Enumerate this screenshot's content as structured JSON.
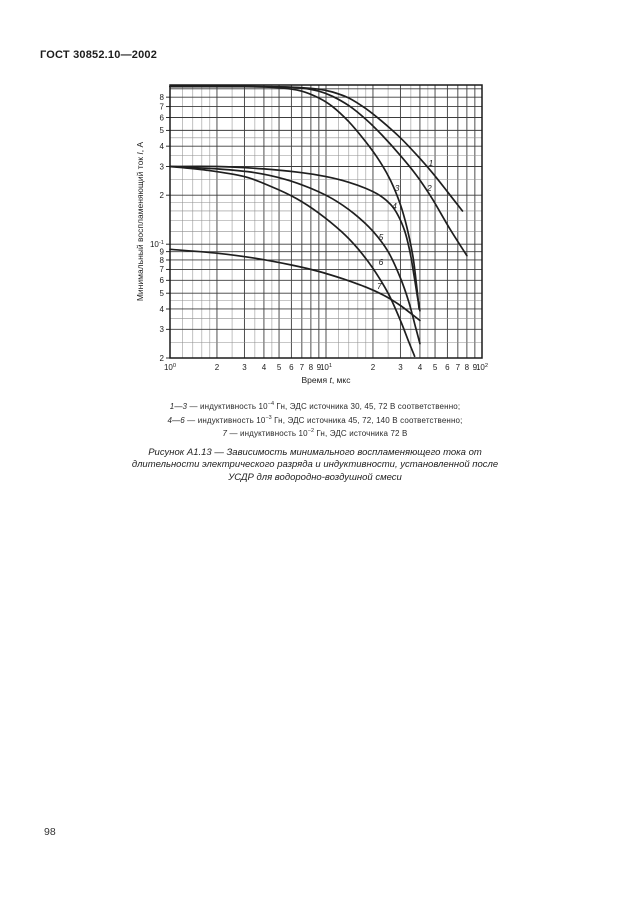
{
  "page": {
    "header": "ГОСТ 30852.10—2002",
    "number": "98"
  },
  "chart_data": {
    "type": "line",
    "x_scale": "log",
    "y_scale": "log",
    "xlim": [
      1,
      100
    ],
    "ylim": [
      0.02,
      0.95
    ],
    "grid": true,
    "grid_multiples": [
      1,
      1.2,
      1.4,
      1.6,
      1.8,
      2,
      2.5,
      3,
      3.5,
      4,
      4.5,
      5,
      6,
      7,
      8,
      9
    ],
    "xlabel_parts": [
      "Время ",
      "t",
      ", мкс"
    ],
    "ylabel_parts": [
      "Минимальный воспламеняющий ток ",
      "I",
      ", А"
    ],
    "x_ticks": [
      {
        "v": 1,
        "t": "10^0"
      },
      {
        "v": 2,
        "t": "2"
      },
      {
        "v": 3,
        "t": "3"
      },
      {
        "v": 4,
        "t": "4"
      },
      {
        "v": 5,
        "t": "5"
      },
      {
        "v": 6,
        "t": "6"
      },
      {
        "v": 7,
        "t": "7"
      },
      {
        "v": 8,
        "t": "8"
      },
      {
        "v": 9,
        "t": "9"
      },
      {
        "v": 10,
        "t": "10^1"
      },
      {
        "v": 20,
        "t": "2"
      },
      {
        "v": 30,
        "t": "3"
      },
      {
        "v": 40,
        "t": "4"
      },
      {
        "v": 50,
        "t": "5"
      },
      {
        "v": 60,
        "t": "6"
      },
      {
        "v": 70,
        "t": "7"
      },
      {
        "v": 80,
        "t": "8"
      },
      {
        "v": 90,
        "t": "9"
      },
      {
        "v": 100,
        "t": "10^2"
      }
    ],
    "y_ticks": [
      {
        "v": 0.8,
        "t": "8"
      },
      {
        "v": 0.7,
        "t": "7"
      },
      {
        "v": 0.6,
        "t": "6"
      },
      {
        "v": 0.5,
        "t": "5"
      },
      {
        "v": 0.4,
        "t": "4"
      },
      {
        "v": 0.3,
        "t": "3"
      },
      {
        "v": 0.2,
        "t": "2"
      },
      {
        "v": 0.1,
        "t": "10^-1"
      },
      {
        "v": 0.09,
        "t": "9"
      },
      {
        "v": 0.08,
        "t": "8"
      },
      {
        "v": 0.07,
        "t": "7"
      },
      {
        "v": 0.06,
        "t": "6"
      },
      {
        "v": 0.05,
        "t": "5"
      },
      {
        "v": 0.04,
        "t": "4"
      },
      {
        "v": 0.03,
        "t": "3"
      },
      {
        "v": 0.02,
        "t": "2"
      }
    ],
    "series": [
      {
        "name": "1",
        "inductance_H": "1e-4",
        "emf_V": 30,
        "points": [
          [
            1,
            0.93
          ],
          [
            3,
            0.93
          ],
          [
            5,
            0.925
          ],
          [
            7,
            0.915
          ],
          [
            9,
            0.895
          ],
          [
            11,
            0.86
          ],
          [
            14,
            0.79
          ],
          [
            18,
            0.68
          ],
          [
            23,
            0.565
          ],
          [
            30,
            0.45
          ],
          [
            38,
            0.355
          ],
          [
            48,
            0.275
          ],
          [
            60,
            0.21
          ],
          [
            75,
            0.16
          ]
        ],
        "label_at": [
          47,
          0.315
        ]
      },
      {
        "name": "2",
        "inductance_H": "1e-4",
        "emf_V": 45,
        "points": [
          [
            1,
            0.93
          ],
          [
            3,
            0.93
          ],
          [
            5,
            0.925
          ],
          [
            7,
            0.91
          ],
          [
            9,
            0.87
          ],
          [
            11,
            0.81
          ],
          [
            14,
            0.71
          ],
          [
            18,
            0.585
          ],
          [
            23,
            0.465
          ],
          [
            30,
            0.35
          ],
          [
            38,
            0.265
          ],
          [
            48,
            0.19
          ],
          [
            62,
            0.125
          ],
          [
            80,
            0.085
          ]
        ],
        "label_at": [
          46,
          0.222
        ]
      },
      {
        "name": "3",
        "inductance_H": "1e-4",
        "emf_V": 72,
        "points": [
          [
            1,
            0.93
          ],
          [
            3,
            0.928
          ],
          [
            5,
            0.915
          ],
          [
            7,
            0.87
          ],
          [
            9,
            0.79
          ],
          [
            11,
            0.7
          ],
          [
            14,
            0.565
          ],
          [
            18,
            0.425
          ],
          [
            22,
            0.325
          ],
          [
            26,
            0.245
          ],
          [
            30,
            0.175
          ],
          [
            33,
            0.127
          ],
          [
            36,
            0.085
          ],
          [
            38,
            0.057
          ],
          [
            39.5,
            0.04
          ]
        ],
        "label_at": [
          28.5,
          0.222
        ]
      },
      {
        "name": "4",
        "inductance_H": "1e-3",
        "emf_V": 45,
        "points": [
          [
            1,
            0.3
          ],
          [
            2,
            0.3
          ],
          [
            4,
            0.29
          ],
          [
            7,
            0.275
          ],
          [
            10,
            0.26
          ],
          [
            14,
            0.24
          ],
          [
            18,
            0.22
          ],
          [
            22,
            0.2
          ],
          [
            26,
            0.175
          ],
          [
            29,
            0.15
          ],
          [
            32,
            0.12
          ],
          [
            34.5,
            0.09
          ],
          [
            36.5,
            0.066
          ],
          [
            38.5,
            0.048
          ],
          [
            40,
            0.039
          ]
        ],
        "label_at": [
          27.5,
          0.172
        ]
      },
      {
        "name": "5",
        "inductance_H": "1e-3",
        "emf_V": 72,
        "points": [
          [
            1,
            0.3
          ],
          [
            2,
            0.29
          ],
          [
            3.5,
            0.275
          ],
          [
            5.5,
            0.25
          ],
          [
            8,
            0.22
          ],
          [
            11,
            0.19
          ],
          [
            15,
            0.155
          ],
          [
            20,
            0.12
          ],
          [
            25,
            0.09
          ],
          [
            30,
            0.062
          ],
          [
            34,
            0.044
          ],
          [
            37.5,
            0.031
          ],
          [
            40,
            0.0245
          ]
        ],
        "label_at": [
          22.5,
          0.111
        ]
      },
      {
        "name": "6",
        "inductance_H": "1e-3",
        "emf_V": 140,
        "points": [
          [
            1,
            0.3
          ],
          [
            1.7,
            0.285
          ],
          [
            3,
            0.26
          ],
          [
            4.5,
            0.225
          ],
          [
            6.5,
            0.19
          ],
          [
            9,
            0.155
          ],
          [
            12.5,
            0.12
          ],
          [
            16,
            0.094
          ],
          [
            20,
            0.071
          ],
          [
            25,
            0.05
          ],
          [
            30,
            0.034
          ],
          [
            34,
            0.025
          ],
          [
            37,
            0.0205
          ]
        ],
        "label_at": [
          22.5,
          0.0775
        ]
      },
      {
        "name": "7",
        "inductance_H": "1e-2",
        "emf_V": 72,
        "points": [
          [
            1,
            0.093
          ],
          [
            2,
            0.088
          ],
          [
            3.5,
            0.082
          ],
          [
            6,
            0.0745
          ],
          [
            9,
            0.068
          ],
          [
            13,
            0.061
          ],
          [
            18,
            0.0545
          ],
          [
            24,
            0.048
          ],
          [
            30,
            0.042
          ],
          [
            35,
            0.0375
          ],
          [
            40,
            0.034
          ]
        ],
        "label_at": [
          22,
          0.0555
        ]
      }
    ],
    "colors": {
      "curve": "#1f1f1f",
      "grid_minor": "#8f8f8f",
      "grid_labeled": "#3c3c3c",
      "frame": "#1a1a1a"
    }
  },
  "legend": {
    "lines": [
      {
        "nums": "1—3",
        "pre": " — индуктивность 10",
        "exp": "−4",
        "post": " Гн, ЭДС источника 30, 45, 72 В соответственно;"
      },
      {
        "nums": "4—6",
        "pre": " — индуктивность 10",
        "exp": "−3",
        "post": " Гн, ЭДС источника 45, 72, 140 В соответственно;"
      },
      {
        "nums": "7",
        "pre": " — индуктивность 10",
        "exp": "−2",
        "post": " Гн, ЭДС источника 72 В"
      }
    ]
  },
  "caption": {
    "lines": [
      "Рисунок А1.13 — Зависимость минимального воспламеняющего тока от",
      "длительности электрического разряда и индуктивности, установленной после",
      "УСДР для водородно-воздушной смеси"
    ]
  }
}
